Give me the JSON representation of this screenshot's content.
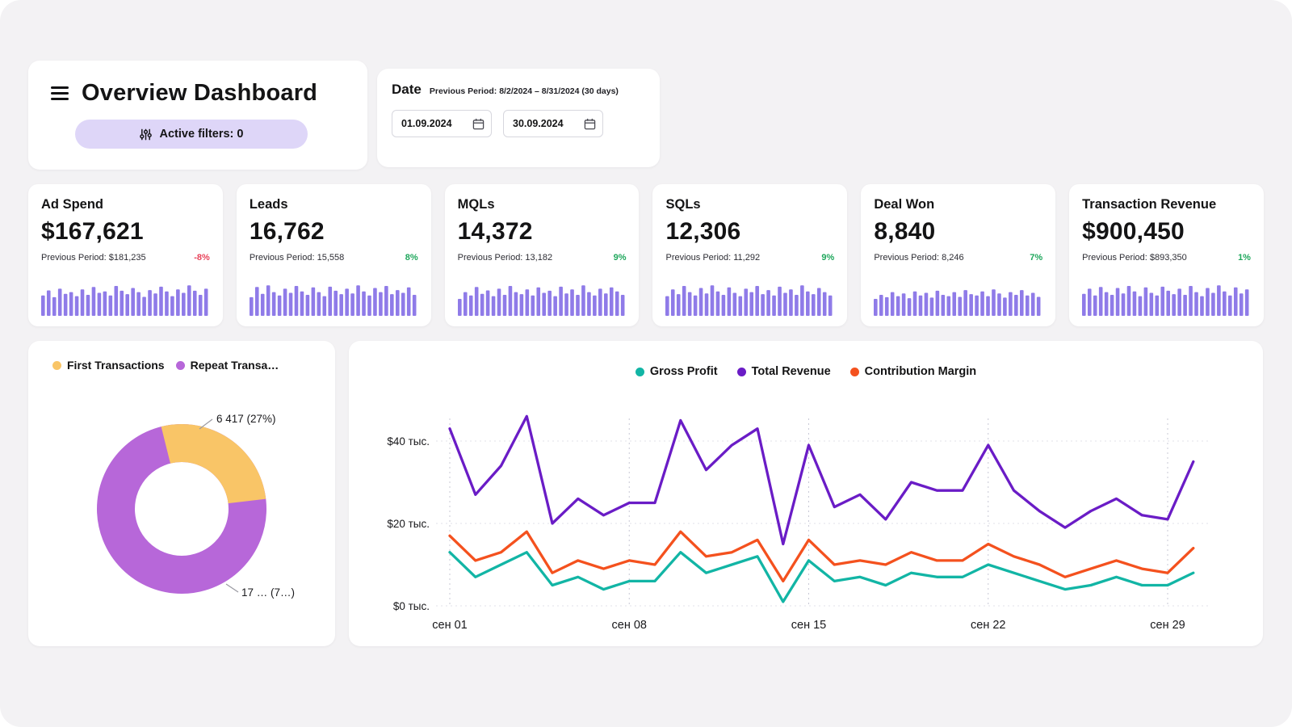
{
  "header": {
    "title": "Overview Dashboard",
    "filters_label": "Active filters: 0"
  },
  "date_panel": {
    "label": "Date",
    "previous_period": "Previous Period: 8/2/2024 – 8/31/2024 (30 days)",
    "start_date": "01.09.2024",
    "end_date": "30.09.2024"
  },
  "theme": {
    "bar_color": "#8f7be8",
    "positive": "#1fa75c",
    "negative": "#e8435a",
    "pill_bg": "#ded6f8",
    "grid_vertical": "#c8c8d6",
    "grid_horizontal": "#e2e2ea"
  },
  "kpis": [
    {
      "label": "Ad Spend",
      "value": "$167,621",
      "previous": "Previous Period: $181,235",
      "delta": "-8%",
      "delta_color": "#e8435a",
      "bars": [
        60,
        75,
        55,
        80,
        65,
        70,
        58,
        78,
        62,
        85,
        68,
        72,
        60,
        88,
        74,
        64,
        82,
        70,
        56,
        76,
        66,
        86,
        72,
        58,
        78,
        68,
        90,
        74,
        62,
        80
      ]
    },
    {
      "label": "Leads",
      "value": "16,762",
      "previous": "Previous Period: 15,558",
      "delta": "8%",
      "delta_color": "#1fa75c",
      "bars": [
        55,
        85,
        65,
        90,
        70,
        60,
        80,
        68,
        88,
        72,
        62,
        84,
        70,
        58,
        86,
        74,
        64,
        80,
        66,
        90,
        72,
        60,
        82,
        70,
        88,
        64,
        76,
        68,
        84,
        62
      ]
    },
    {
      "label": "MQLs",
      "value": "14,372",
      "previous": "Previous Period: 13,182",
      "delta": "9%",
      "delta_color": "#1fa75c",
      "bars": [
        50,
        70,
        60,
        85,
        65,
        75,
        58,
        80,
        62,
        88,
        70,
        64,
        78,
        60,
        84,
        68,
        74,
        58,
        86,
        66,
        78,
        62,
        90,
        70,
        60,
        80,
        66,
        84,
        72,
        62
      ]
    },
    {
      "label": "SQLs",
      "value": "12,306",
      "previous": "Previous Period: 11,292",
      "delta": "9%",
      "delta_color": "#1fa75c",
      "bars": [
        58,
        78,
        64,
        88,
        70,
        60,
        82,
        66,
        90,
        72,
        62,
        84,
        68,
        58,
        80,
        70,
        88,
        64,
        76,
        60,
        86,
        68,
        78,
        62,
        90,
        72,
        64,
        82,
        70,
        60
      ]
    },
    {
      "label": "Deal Won",
      "value": "8,840",
      "previous": "Previous Period: 8,246",
      "delta": "7%",
      "delta_color": "#1fa75c",
      "bars": [
        50,
        62,
        55,
        70,
        58,
        66,
        52,
        72,
        60,
        68,
        54,
        74,
        62,
        58,
        70,
        56,
        76,
        64,
        60,
        72,
        58,
        78,
        66,
        54,
        70,
        62,
        76,
        60,
        68,
        56
      ]
    },
    {
      "label": "Transaction Revenue",
      "value": "$900,450",
      "previous": "Previous Period: $893,350",
      "delta": "1%",
      "delta_color": "#1fa75c",
      "bars": [
        65,
        80,
        60,
        85,
        70,
        62,
        82,
        66,
        88,
        72,
        58,
        84,
        68,
        60,
        86,
        74,
        64,
        80,
        62,
        88,
        70,
        58,
        82,
        68,
        90,
        72,
        60,
        84,
        66,
        78
      ]
    }
  ],
  "chart_data": [
    {
      "type": "pie",
      "donut": true,
      "legend_position": "top-left",
      "segments": [
        {
          "label": "First Transactions",
          "legend_label": "First Transactions",
          "value": 6417,
          "percent": 27,
          "value_label": "6 417 (27%)",
          "color": "#f9c567"
        },
        {
          "label": "Repeat Transactions",
          "legend_label": "Repeat Transa…",
          "percent": 73,
          "value_label": "17 … (7…)",
          "color": "#b767d9"
        }
      ]
    },
    {
      "type": "line",
      "legend_position": "top-center",
      "x_unit": "day of September",
      "x_tick_days": [
        1,
        8,
        15,
        22,
        29
      ],
      "x_tick_labels": [
        "сен 01",
        "сен 08",
        "сен 15",
        "сен 22",
        "сен 29"
      ],
      "y_ticks": [
        0,
        20,
        40
      ],
      "y_tick_labels": [
        "$0 тыс.",
        "$20 тыс.",
        "$40 тыс."
      ],
      "ylim": [
        0,
        48
      ],
      "grid": "dotted",
      "series": [
        {
          "name": "Gross Profit",
          "color": "#12b5a5",
          "values": [
            13,
            7,
            10,
            13,
            5,
            7,
            4,
            6,
            6,
            13,
            8,
            10,
            12,
            1,
            11,
            6,
            7,
            5,
            8,
            7,
            7,
            10,
            8,
            6,
            4,
            5,
            7,
            5,
            5,
            8
          ]
        },
        {
          "name": "Total Revenue",
          "color": "#6a1cc6",
          "values": [
            43,
            27,
            34,
            46,
            20,
            26,
            22,
            25,
            25,
            45,
            33,
            39,
            43,
            15,
            39,
            24,
            27,
            21,
            30,
            28,
            28,
            39,
            28,
            23,
            19,
            23,
            26,
            22,
            21,
            35
          ]
        },
        {
          "name": "Contribution Margin",
          "color": "#f4511e",
          "values": [
            17,
            11,
            13,
            18,
            8,
            11,
            9,
            11,
            10,
            18,
            12,
            13,
            16,
            6,
            16,
            10,
            11,
            10,
            13,
            11,
            11,
            15,
            12,
            10,
            7,
            9,
            11,
            9,
            8,
            14
          ]
        }
      ]
    }
  ]
}
